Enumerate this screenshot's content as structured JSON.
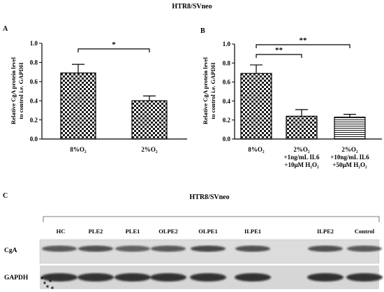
{
  "figure": {
    "title": "HTR8/SVneo"
  },
  "chart_data": [
    {
      "type": "bar",
      "panel": "A",
      "ylabel_lines": [
        "Relative CgA protein level",
        "to control i.e. GAPDH"
      ],
      "ylim": [
        0,
        1.0
      ],
      "ticks": [
        "0.0",
        "0.2",
        "0.4",
        "0.6",
        "0.8",
        "1.0"
      ],
      "categories": [
        [
          "8%O₂"
        ],
        [
          "2%O₂"
        ]
      ],
      "values": [
        0.69,
        0.4
      ],
      "errors": [
        0.09,
        0.05
      ],
      "significance": [
        {
          "from": 0,
          "to": 1,
          "label": "*"
        }
      ]
    },
    {
      "type": "bar",
      "panel": "B",
      "ylabel_lines": [
        "Relative CgA protein level",
        "to control i.e. GAPDH"
      ],
      "ylim": [
        0,
        1.0
      ],
      "ticks": [
        "0.0",
        "0.2",
        "0.4",
        "0.6",
        "0.8",
        "1.0"
      ],
      "categories": [
        [
          "8%O₂"
        ],
        [
          "2%O₂",
          "+1ng/mL IL6",
          "+10μM H₂O₂"
        ],
        [
          "2%O₂",
          "+10ng/mL IL6",
          "+50μM H₂O₂"
        ]
      ],
      "values": [
        0.69,
        0.24,
        0.23
      ],
      "errors": [
        0.09,
        0.07,
        0.03
      ],
      "significance": [
        {
          "from": 0,
          "to": 1,
          "label": "**"
        },
        {
          "from": 0,
          "to": 2,
          "label": "**"
        }
      ]
    }
  ],
  "blot": {
    "panel": "C",
    "title": "HTR8/SVneo",
    "lanes": [
      "HC",
      "PLE2",
      "PLE1",
      "OLPE2",
      "OLPE1",
      "ILPE1",
      "ILPE2",
      "Control"
    ],
    "rows": [
      "CgA",
      "GAPDH"
    ]
  }
}
